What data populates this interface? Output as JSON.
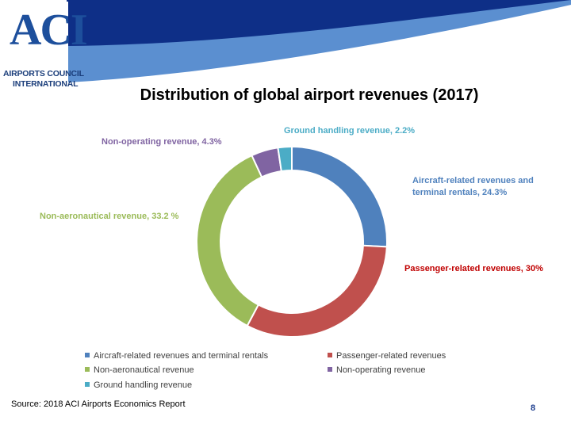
{
  "logo": {
    "mark": "ACI",
    "line1": "AIRPORTS COUNCIL",
    "line2": "INTERNATIONAL"
  },
  "page_number": "8",
  "source": "Source: 2018 ACI Airports Economics Report",
  "chart_data": {
    "type": "pie",
    "variant": "donut",
    "title": "Distribution of global airport revenues (2017)",
    "legend_position": "bottom",
    "slices": [
      {
        "name": "Aircraft-related revenues and terminal rentals",
        "value": 24.3,
        "color": "#4f81bd",
        "data_label": "Aircraft-related revenues and terminal rentals, 24.3%"
      },
      {
        "name": "Passenger-related revenues",
        "value": 30,
        "color": "#c0504d",
        "data_label": "Passenger-related revenues, 30%"
      },
      {
        "name": "Non-aeronautical revenue",
        "value": 33.2,
        "color": "#9bbb59",
        "data_label": "Non-aeronautical revenue, 33.2 %"
      },
      {
        "name": "Non-operating revenue",
        "value": 4.3,
        "color": "#8064a2",
        "data_label": "Non-operating revenue, 4.3%"
      },
      {
        "name": "Ground handling revenue",
        "value": 2.2,
        "color": "#4bacc6",
        "data_label": "Ground handling revenue, 2.2%"
      }
    ],
    "label_colors": [
      "#4f81bd",
      "#c00000",
      "#9bbb59",
      "#8064a2",
      "#4bacc6"
    ]
  }
}
